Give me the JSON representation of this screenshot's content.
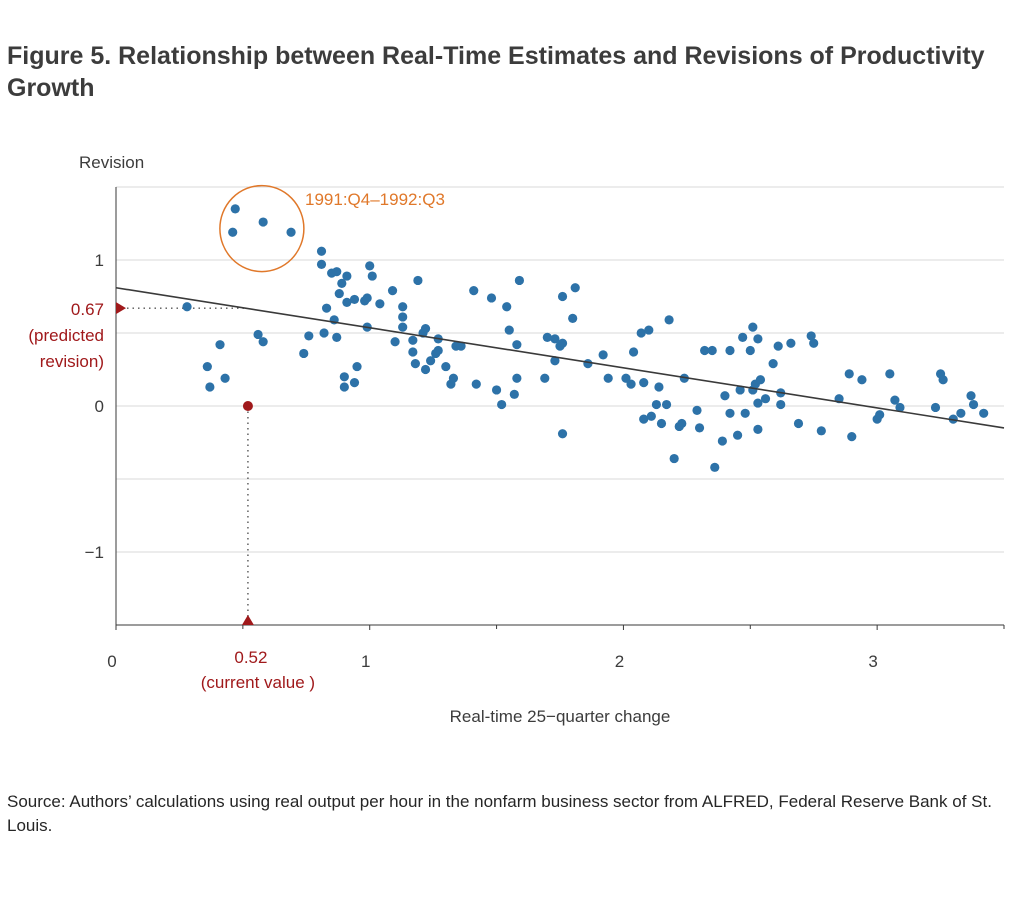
{
  "title": "Figure 5. Relationship between Real-Time Estimates and Revisions of Productivity Growth",
  "source": "Source: Authors’ calculations using real output per hour in the nonfarm business sector from ALFRED, Federal Reserve Bank of St. Louis.",
  "colors": {
    "points": "#2d72a8",
    "fit_line": "#3a3a3a",
    "highlight": "#a0191b",
    "annotation": "#e0782a",
    "grid": "#d9d9d9",
    "text": "#3c3c3c"
  },
  "chart_data": {
    "type": "scatter",
    "title": "Figure 5. Relationship between Real-Time Estimates and Revisions of Productivity Growth",
    "xlabel": "Real-time 25−quarter change",
    "ylabel": "Revision",
    "xlim": [
      0,
      3.5
    ],
    "ylim": [
      -1.5,
      1.5
    ],
    "x_ticks": [
      0,
      1,
      2,
      3
    ],
    "x_tick_labels": [
      "0",
      "1",
      "2",
      "3"
    ],
    "y_ticks": [
      1,
      0,
      -1
    ],
    "y_tick_labels": [
      "1",
      "0",
      "−1"
    ],
    "y_gridlines": [
      1.5,
      1,
      0.5,
      0,
      -0.5,
      -1
    ],
    "grid": true,
    "points": [
      [
        0.28,
        0.68
      ],
      [
        0.36,
        0.27
      ],
      [
        0.37,
        0.13
      ],
      [
        0.41,
        0.42
      ],
      [
        0.43,
        0.19
      ],
      [
        0.47,
        1.35
      ],
      [
        0.46,
        1.19
      ],
      [
        0.58,
        1.26
      ],
      [
        0.69,
        1.19
      ],
      [
        0.56,
        0.49
      ],
      [
        0.58,
        0.44
      ],
      [
        0.74,
        0.36
      ],
      [
        0.76,
        0.48
      ],
      [
        0.81,
        0.97
      ],
      [
        0.81,
        1.06
      ],
      [
        0.82,
        0.5
      ],
      [
        0.83,
        0.67
      ],
      [
        0.85,
        0.91
      ],
      [
        0.87,
        0.92
      ],
      [
        0.86,
        0.59
      ],
      [
        0.87,
        0.47
      ],
      [
        0.88,
        0.77
      ],
      [
        0.89,
        0.84
      ],
      [
        0.9,
        0.2
      ],
      [
        0.9,
        0.13
      ],
      [
        0.91,
        0.89
      ],
      [
        0.91,
        0.71
      ],
      [
        0.94,
        0.73
      ],
      [
        0.94,
        0.16
      ],
      [
        0.95,
        0.27
      ],
      [
        0.98,
        0.72
      ],
      [
        0.99,
        0.74
      ],
      [
        0.99,
        0.54
      ],
      [
        1.0,
        0.96
      ],
      [
        1.01,
        0.89
      ],
      [
        1.04,
        0.7
      ],
      [
        1.09,
        0.79
      ],
      [
        1.1,
        0.44
      ],
      [
        1.13,
        0.68
      ],
      [
        1.13,
        0.61
      ],
      [
        1.13,
        0.54
      ],
      [
        1.17,
        0.45
      ],
      [
        1.17,
        0.37
      ],
      [
        1.18,
        0.29
      ],
      [
        1.19,
        0.86
      ],
      [
        1.21,
        0.5
      ],
      [
        1.22,
        0.53
      ],
      [
        1.22,
        0.25
      ],
      [
        1.24,
        0.31
      ],
      [
        1.26,
        0.36
      ],
      [
        1.27,
        0.38
      ],
      [
        1.27,
        0.46
      ],
      [
        1.3,
        0.27
      ],
      [
        1.32,
        0.15
      ],
      [
        1.33,
        0.19
      ],
      [
        1.34,
        0.41
      ],
      [
        1.36,
        0.41
      ],
      [
        1.41,
        0.79
      ],
      [
        1.42,
        0.15
      ],
      [
        1.48,
        0.74
      ],
      [
        1.5,
        0.11
      ],
      [
        1.52,
        0.01
      ],
      [
        1.54,
        0.68
      ],
      [
        1.55,
        0.52
      ],
      [
        1.57,
        0.08
      ],
      [
        1.58,
        0.19
      ],
      [
        1.58,
        0.42
      ],
      [
        1.59,
        0.86
      ],
      [
        1.69,
        0.19
      ],
      [
        1.7,
        0.47
      ],
      [
        1.73,
        0.46
      ],
      [
        1.73,
        0.31
      ],
      [
        1.75,
        0.41
      ],
      [
        1.76,
        0.43
      ],
      [
        1.76,
        0.75
      ],
      [
        1.76,
        -0.19
      ],
      [
        1.8,
        0.6
      ],
      [
        1.81,
        0.81
      ],
      [
        1.86,
        0.29
      ],
      [
        1.92,
        0.35
      ],
      [
        1.94,
        0.19
      ],
      [
        2.01,
        0.19
      ],
      [
        2.03,
        0.15
      ],
      [
        2.04,
        0.37
      ],
      [
        2.07,
        0.5
      ],
      [
        2.08,
        0.16
      ],
      [
        2.08,
        -0.09
      ],
      [
        2.1,
        0.52
      ],
      [
        2.11,
        -0.07
      ],
      [
        2.13,
        0.01
      ],
      [
        2.14,
        0.13
      ],
      [
        2.15,
        -0.12
      ],
      [
        2.17,
        0.01
      ],
      [
        2.18,
        0.59
      ],
      [
        2.2,
        -0.36
      ],
      [
        2.22,
        -0.14
      ],
      [
        2.23,
        -0.12
      ],
      [
        2.24,
        0.19
      ],
      [
        2.29,
        -0.03
      ],
      [
        2.3,
        -0.15
      ],
      [
        2.32,
        0.38
      ],
      [
        2.35,
        0.38
      ],
      [
        2.36,
        -0.42
      ],
      [
        2.39,
        -0.24
      ],
      [
        2.4,
        0.07
      ],
      [
        2.42,
        -0.05
      ],
      [
        2.42,
        0.38
      ],
      [
        2.45,
        -0.2
      ],
      [
        2.46,
        0.11
      ],
      [
        2.47,
        0.47
      ],
      [
        2.48,
        -0.05
      ],
      [
        2.5,
        0.38
      ],
      [
        2.51,
        0.54
      ],
      [
        2.51,
        0.11
      ],
      [
        2.52,
        0.15
      ],
      [
        2.53,
        0.46
      ],
      [
        2.53,
        0.02
      ],
      [
        2.53,
        -0.16
      ],
      [
        2.54,
        0.18
      ],
      [
        2.56,
        0.05
      ],
      [
        2.59,
        0.29
      ],
      [
        2.61,
        0.41
      ],
      [
        2.62,
        0.01
      ],
      [
        2.62,
        0.09
      ],
      [
        2.66,
        0.43
      ],
      [
        2.69,
        -0.12
      ],
      [
        2.74,
        0.48
      ],
      [
        2.75,
        0.43
      ],
      [
        2.78,
        -0.17
      ],
      [
        2.85,
        0.05
      ],
      [
        2.89,
        0.22
      ],
      [
        2.9,
        -0.21
      ],
      [
        2.94,
        0.18
      ],
      [
        3.0,
        -0.09
      ],
      [
        3.01,
        -0.06
      ],
      [
        3.05,
        0.22
      ],
      [
        3.07,
        0.04
      ],
      [
        3.09,
        -0.01
      ],
      [
        3.23,
        -0.01
      ],
      [
        3.25,
        0.22
      ],
      [
        3.26,
        0.18
      ],
      [
        3.3,
        -0.09
      ],
      [
        3.33,
        -0.05
      ],
      [
        3.37,
        0.07
      ],
      [
        3.38,
        0.01
      ],
      [
        3.42,
        -0.05
      ]
    ],
    "fit_line": {
      "x": [
        0,
        3.5
      ],
      "y": [
        0.81,
        -0.15
      ]
    },
    "highlighted_group": {
      "label": "1991:Q4–1992:Q3",
      "points": [
        [
          0.47,
          1.35
        ],
        [
          0.46,
          1.19
        ],
        [
          0.58,
          1.26
        ],
        [
          0.69,
          1.19
        ]
      ]
    },
    "current_point": {
      "x": 0.52,
      "y": 0,
      "x_label": "0.52",
      "x_sublabel": "(current value )",
      "predicted": 0.67,
      "y_label": "0.67",
      "y_sublabel_1": "(predicted",
      "y_sublabel_2": "revision)"
    }
  }
}
